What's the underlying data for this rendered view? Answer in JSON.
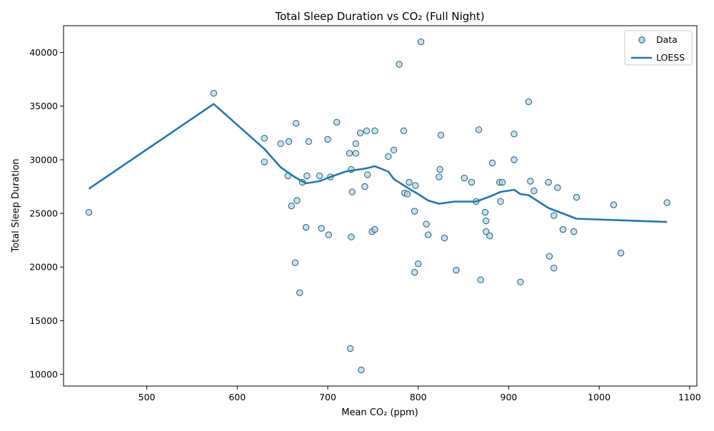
{
  "chart_data": {
    "type": "scatter",
    "title": "Total Sleep Duration vs CO₂ (Full Night)",
    "xlabel": "Mean CO₂ (ppm)",
    "ylabel": "Total Sleep Duration",
    "xlim": [
      408,
      1108
    ],
    "ylim": [
      8900,
      42500
    ],
    "x_ticks": [
      500,
      600,
      700,
      800,
      900,
      1000,
      1100
    ],
    "y_ticks": [
      10000,
      15000,
      20000,
      25000,
      30000,
      35000,
      40000
    ],
    "grid": false,
    "legend_position": "top-right",
    "colors": {
      "point_fill": "#add8e6",
      "point_edge": "#2e5c7a",
      "loess_line": "#1f77b4"
    },
    "series": [
      {
        "name": "Data",
        "kind": "scatter",
        "points": [
          [
            436,
            25100
          ],
          [
            574,
            36200
          ],
          [
            630,
            32000
          ],
          [
            630,
            29800
          ],
          [
            648,
            31500
          ],
          [
            656,
            28500
          ],
          [
            657,
            31700
          ],
          [
            660,
            25700
          ],
          [
            664,
            20400
          ],
          [
            665,
            33400
          ],
          [
            666,
            26200
          ],
          [
            669,
            17600
          ],
          [
            672,
            27900
          ],
          [
            676,
            23700
          ],
          [
            677,
            28500
          ],
          [
            679,
            31700
          ],
          [
            691,
            28500
          ],
          [
            693,
            23600
          ],
          [
            700,
            31900
          ],
          [
            701,
            23000
          ],
          [
            703,
            28400
          ],
          [
            710,
            33500
          ],
          [
            724,
            30600
          ],
          [
            725,
            12400
          ],
          [
            726,
            22800
          ],
          [
            726,
            29100
          ],
          [
            727,
            27000
          ],
          [
            731,
            30600
          ],
          [
            731,
            31500
          ],
          [
            736,
            32500
          ],
          [
            737,
            10400
          ],
          [
            741,
            27500
          ],
          [
            743,
            32700
          ],
          [
            744,
            28600
          ],
          [
            749,
            23300
          ],
          [
            752,
            23500
          ],
          [
            752,
            32700
          ],
          [
            767,
            30300
          ],
          [
            773,
            30900
          ],
          [
            779,
            38900
          ],
          [
            784,
            32700
          ],
          [
            785,
            26900
          ],
          [
            788,
            26800
          ],
          [
            790,
            27900
          ],
          [
            796,
            19500
          ],
          [
            796,
            25200
          ],
          [
            797,
            27600
          ],
          [
            800,
            20300
          ],
          [
            803,
            41000
          ],
          [
            809,
            24000
          ],
          [
            811,
            23000
          ],
          [
            823,
            28400
          ],
          [
            824,
            29100
          ],
          [
            825,
            32300
          ],
          [
            829,
            22700
          ],
          [
            842,
            19700
          ],
          [
            851,
            28300
          ],
          [
            859,
            27900
          ],
          [
            864,
            26100
          ],
          [
            867,
            32800
          ],
          [
            869,
            18800
          ],
          [
            874,
            25100
          ],
          [
            875,
            24300
          ],
          [
            875,
            23300
          ],
          [
            879,
            22900
          ],
          [
            882,
            29700
          ],
          [
            890,
            27900
          ],
          [
            891,
            26100
          ],
          [
            893,
            27900
          ],
          [
            906,
            32400
          ],
          [
            906,
            30000
          ],
          [
            913,
            18600
          ],
          [
            922,
            35400
          ],
          [
            924,
            28000
          ],
          [
            928,
            27100
          ],
          [
            944,
            27900
          ],
          [
            945,
            21000
          ],
          [
            950,
            19900
          ],
          [
            950,
            24800
          ],
          [
            954,
            27400
          ],
          [
            960,
            23500
          ],
          [
            972,
            23300
          ],
          [
            975,
            26500
          ],
          [
            1016,
            25800
          ],
          [
            1024,
            21300
          ],
          [
            1075,
            26000
          ]
        ]
      },
      {
        "name": "LOESS",
        "kind": "line",
        "points": [
          [
            436,
            27300
          ],
          [
            574,
            35200
          ],
          [
            630,
            31000
          ],
          [
            648,
            29300
          ],
          [
            665,
            28300
          ],
          [
            676,
            27800
          ],
          [
            691,
            28000
          ],
          [
            703,
            28400
          ],
          [
            720,
            28900
          ],
          [
            743,
            29200
          ],
          [
            752,
            29400
          ],
          [
            767,
            28900
          ],
          [
            773,
            28200
          ],
          [
            790,
            27300
          ],
          [
            800,
            26800
          ],
          [
            811,
            26200
          ],
          [
            823,
            25900
          ],
          [
            840,
            26100
          ],
          [
            864,
            26100
          ],
          [
            880,
            26600
          ],
          [
            891,
            27000
          ],
          [
            906,
            27200
          ],
          [
            913,
            26800
          ],
          [
            922,
            26700
          ],
          [
            944,
            25500
          ],
          [
            975,
            24500
          ],
          [
            1075,
            24200
          ]
        ]
      }
    ]
  }
}
